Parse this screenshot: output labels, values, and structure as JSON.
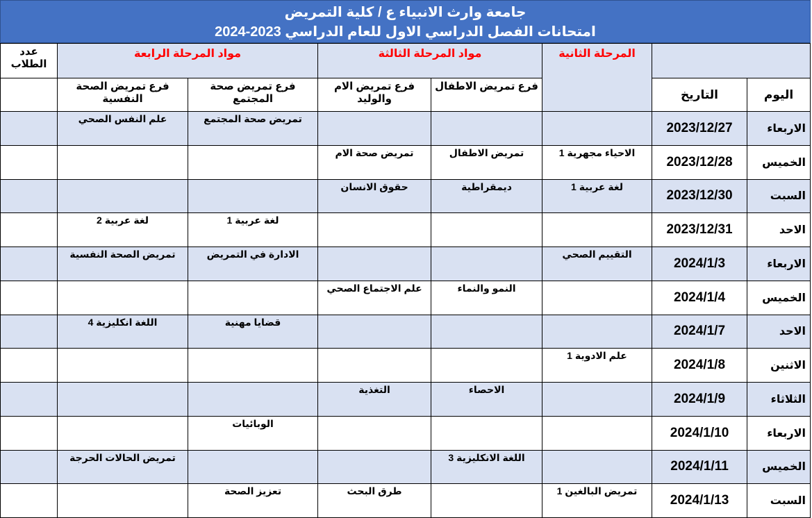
{
  "header": {
    "title": "جامعة وارث الانبياء ع / كلية التمريض",
    "subtitle": "امتحانات الفصل الدراسي الاول للعام الدراسي 2023-2024"
  },
  "columns": {
    "day": "اليوم",
    "date": "التاريخ",
    "stage2": "المرحلة الثانية",
    "stage3": "مواد المرحلة الثالثة",
    "stage4": "مواد المرحلة الرابعة",
    "students": "عدد الطلاب",
    "children": "فرع تمريض الاطفال",
    "maternal": "فرع تمريض الام والوليد",
    "community": "فرع تمريض صحة المجتمع",
    "psych": "فرع تمريض الصحة النفسية"
  },
  "colors": {
    "banner": "#4472C4",
    "stripe": "#D9E1F2",
    "stage_header": "#FF0000"
  },
  "rows": [
    {
      "day": "الاربعاء",
      "date": "2023/12/27",
      "stage2": "",
      "children": "",
      "maternal": "",
      "community": "تمريض صحة المجتمع",
      "psych": "علم النفس الصحي",
      "students": ""
    },
    {
      "day": "الخميس",
      "date": "2023/12/28",
      "stage2": "الاحياء مجهرية 1",
      "children": "تمريض الاطفال",
      "maternal": "تمريض صحة الام",
      "community": "",
      "psych": "",
      "students": ""
    },
    {
      "day": "السبت",
      "date": "2023/12/30",
      "stage2": "لغة عربية 1",
      "children": "ديمقراطية",
      "maternal": "حقوق الانسان",
      "community": "",
      "psych": "",
      "students": ""
    },
    {
      "day": "الاحد",
      "date": "2023/12/31",
      "stage2": "",
      "children": "",
      "maternal": "",
      "community": "لغة عربية 1",
      "psych": "لغة عربية 2",
      "students": ""
    },
    {
      "day": "الاربعاء",
      "date": "2024/1/3",
      "stage2": "التقييم الصحي",
      "children": "",
      "maternal": "",
      "community": "الادارة في التمريض",
      "psych": "تمريض الصحة النفسية",
      "students": ""
    },
    {
      "day": "الخميس",
      "date": "2024/1/4",
      "stage2": "",
      "children": "النمو والنماء",
      "maternal": "علم الاجتماع الصحي",
      "community": "",
      "psych": "",
      "students": ""
    },
    {
      "day": "الاحد",
      "date": "2024/1/7",
      "stage2": "",
      "children": "",
      "maternal": "",
      "community": "قضايا مهنية",
      "psych": "اللغة انكليزية 4",
      "students": ""
    },
    {
      "day": "الاثنين",
      "date": "2024/1/8",
      "stage2": "علم الادوية 1",
      "children": "",
      "maternal": "",
      "community": "",
      "psych": "",
      "students": ""
    },
    {
      "day": "الثلاثاء",
      "date": "2024/1/9",
      "stage2": "",
      "children": "الاحصاء",
      "maternal": "التغذية",
      "community": "",
      "psych": "",
      "students": ""
    },
    {
      "day": "الاربعاء",
      "date": "2024/1/10",
      "stage2": "",
      "children": "",
      "maternal": "",
      "community": "الوبائيات",
      "psych": "",
      "students": ""
    },
    {
      "day": "الخميس",
      "date": "2024/1/11",
      "stage2": "",
      "children": "اللغة الانكليزية 3",
      "maternal": "",
      "community": "",
      "psych": "تمريض الحالات الحرجة",
      "students": ""
    },
    {
      "day": "السبت",
      "date": "2024/1/13",
      "stage2": "تمريض البالغين 1",
      "children": "",
      "maternal": "طرق البحث",
      "community": "تعزيز الصحة",
      "psych": "",
      "students": ""
    }
  ]
}
